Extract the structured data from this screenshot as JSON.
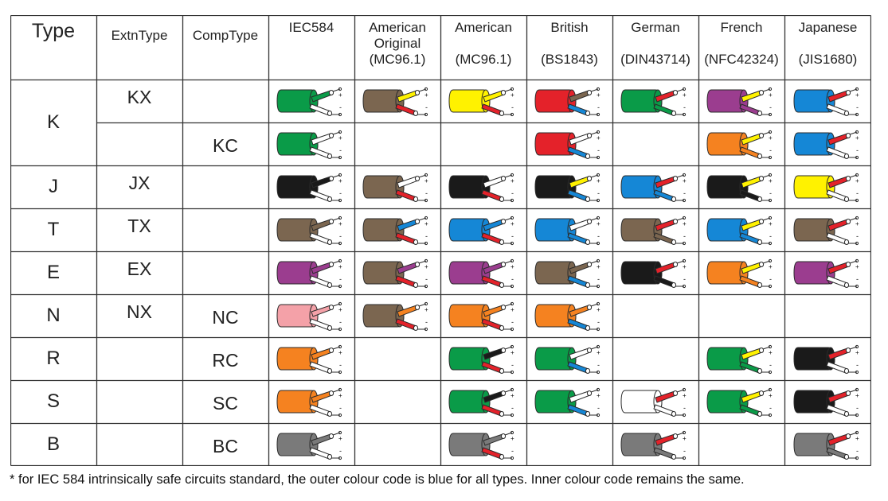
{
  "headers": {
    "type": "Type",
    "extn": "ExtnType",
    "comp": "CompType",
    "standards": [
      {
        "lines": [
          "IEC584"
        ]
      },
      {
        "lines": [
          "American",
          "Original",
          "(MC96.1)"
        ]
      },
      {
        "lines": [
          "American",
          "",
          "(MC96.1)"
        ]
      },
      {
        "lines": [
          "British",
          "",
          "(BS1843)"
        ]
      },
      {
        "lines": [
          "German",
          "",
          "(DIN43714)"
        ]
      },
      {
        "lines": [
          "French",
          "",
          "(NFC42324)"
        ]
      },
      {
        "lines": [
          "Japanese",
          "",
          "(JIS1680)"
        ]
      }
    ]
  },
  "rows": [
    {
      "type": "K",
      "extn": "KX",
      "comp": "",
      "cables": [
        [
          "green",
          "green",
          "white"
        ],
        [
          "brown",
          "yellow",
          "red"
        ],
        [
          "yellow",
          "yellow",
          "red"
        ],
        [
          "red",
          "brown",
          "blue"
        ],
        [
          "green",
          "red",
          "green"
        ],
        [
          "purple",
          "yellow",
          "purple"
        ],
        [
          "blue",
          "red",
          "white"
        ]
      ]
    },
    {
      "type": "",
      "extn": "",
      "comp": "KC",
      "cables": [
        [
          "green",
          "white",
          "white"
        ],
        null,
        null,
        [
          "red",
          "white",
          "blue"
        ],
        null,
        [
          "orange",
          "yellow",
          "orange"
        ],
        [
          "blue",
          "red",
          "white"
        ]
      ]
    },
    {
      "type": "J",
      "extn": "JX",
      "comp": "",
      "cables": [
        [
          "black",
          "black",
          "white"
        ],
        [
          "brown",
          "white",
          "red"
        ],
        [
          "black",
          "white",
          "red"
        ],
        [
          "black",
          "yellow",
          "blue"
        ],
        [
          "blue",
          "red",
          "blue"
        ],
        [
          "black",
          "yellow",
          "black"
        ],
        [
          "yellow",
          "red",
          "white"
        ]
      ]
    },
    {
      "type": "T",
      "extn": "TX",
      "comp": "",
      "cables": [
        [
          "brown",
          "brown",
          "white"
        ],
        [
          "brown",
          "blue",
          "red"
        ],
        [
          "blue",
          "blue",
          "red"
        ],
        [
          "blue",
          "white",
          "blue"
        ],
        [
          "brown",
          "red",
          "brown"
        ],
        [
          "blue",
          "yellow",
          "blue"
        ],
        [
          "brown",
          "red",
          "white"
        ]
      ]
    },
    {
      "type": "E",
      "extn": "EX",
      "comp": "",
      "cables": [
        [
          "purple",
          "purple",
          "white"
        ],
        [
          "brown",
          "purple",
          "red"
        ],
        [
          "purple",
          "purple",
          "red"
        ],
        [
          "brown",
          "brown",
          "blue"
        ],
        [
          "black",
          "red",
          "black"
        ],
        [
          "orange",
          "yellow",
          "orange"
        ],
        [
          "purple",
          "red",
          "white"
        ]
      ]
    },
    {
      "type": "N",
      "extn": "NX",
      "comp": "NC",
      "cables": [
        [
          "pink",
          "pink",
          "white"
        ],
        [
          "brown",
          "orange",
          "red"
        ],
        [
          "orange",
          "orange",
          "red"
        ],
        [
          "orange",
          "orange",
          "blue"
        ],
        null,
        null,
        null
      ]
    },
    {
      "type": "R",
      "extn": "",
      "comp": "RC",
      "cables": [
        [
          "orange",
          "orange",
          "white"
        ],
        null,
        [
          "green",
          "black",
          "red"
        ],
        [
          "green",
          "white",
          "blue"
        ],
        null,
        [
          "green",
          "yellow",
          "green"
        ],
        [
          "black",
          "red",
          "white"
        ]
      ]
    },
    {
      "type": "S",
      "extn": "",
      "comp": "SC",
      "cables": [
        [
          "orange",
          "orange",
          "white"
        ],
        null,
        [
          "green",
          "black",
          "red"
        ],
        [
          "green",
          "white",
          "blue"
        ],
        [
          "white",
          "red",
          "white"
        ],
        [
          "green",
          "yellow",
          "green"
        ],
        [
          "black",
          "red",
          "white"
        ]
      ]
    },
    {
      "type": "B",
      "extn": "",
      "comp": "BC",
      "cables": [
        [
          "gray",
          "gray",
          "white"
        ],
        null,
        [
          "gray",
          "gray",
          "red"
        ],
        null,
        [
          "gray",
          "red",
          "gray"
        ],
        null,
        [
          "gray",
          "red",
          "gray"
        ]
      ]
    }
  ],
  "polarity": {
    "plus": "+",
    "minus": "-"
  },
  "colors": {
    "green": "#0a9b48",
    "brown": "#7b6650",
    "yellow": "#fff200",
    "red": "#e4222a",
    "purple": "#9b3d8f",
    "blue": "#1587d6",
    "black": "#1a1a1a",
    "orange": "#f58220",
    "pink": "#f4a1a8",
    "gray": "#7a7a7a",
    "white": "#ffffff",
    "line": "#333333"
  },
  "footnote": "* for IEC 584 intrinsically safe circuits standard, the outer colour code is blue for all types. Inner colour code remains the same."
}
